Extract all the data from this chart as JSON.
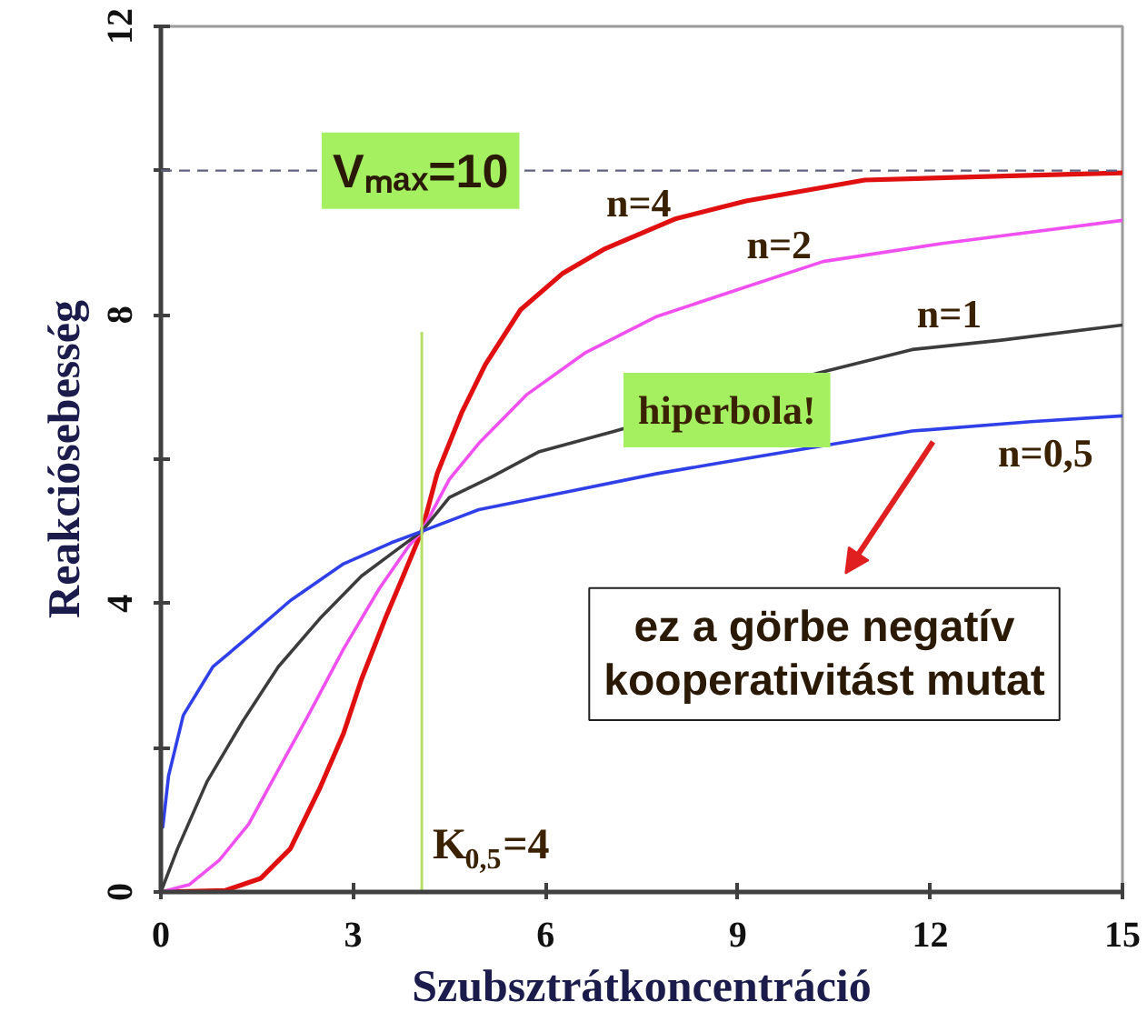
{
  "chart_data": {
    "type": "line",
    "xlabel": "Szubsztrátkoncentráció",
    "ylabel": "Reakciósebesség",
    "xlim": [
      0,
      15
    ],
    "ylim": [
      0,
      12
    ],
    "xticks": [
      0,
      3,
      6,
      9,
      12,
      15
    ],
    "yticks": [
      0,
      {
        "value": 2,
        "label": null
      },
      4,
      {
        "value": 6,
        "label": null
      },
      8,
      {
        "value": 10,
        "label": null
      },
      12
    ],
    "series": [
      {
        "name": "n=4",
        "color": "#e01010",
        "x": [
          0,
          1.0,
          1.56,
          2.02,
          2.48,
          2.85,
          3.13,
          3.5,
          3.78,
          4.07,
          4.31,
          4.69,
          5.06,
          5.61,
          6.26,
          6.91,
          8.02,
          9.13,
          10.98,
          13.39,
          15
        ],
        "values": [
          0,
          0.02,
          0.19,
          0.6,
          1.44,
          2.2,
          2.95,
          3.79,
          4.38,
          5.0,
          5.8,
          6.64,
          7.31,
          8.07,
          8.57,
          8.91,
          9.33,
          9.58,
          9.87,
          9.93,
          9.97
        ]
      },
      {
        "name": "n=2",
        "color": "#f050f0",
        "x": [
          0,
          0.44,
          0.91,
          1.37,
          1.83,
          2.3,
          2.85,
          3.41,
          3.87,
          4.07,
          4.5,
          4.96,
          5.7,
          6.63,
          7.74,
          9.0,
          10.33,
          12.19,
          15
        ],
        "values": [
          0,
          0.1,
          0.44,
          0.94,
          1.69,
          2.45,
          3.37,
          4.21,
          4.8,
          5.0,
          5.72,
          6.22,
          6.89,
          7.48,
          7.98,
          8.35,
          8.74,
          8.99,
          9.31
        ]
      },
      {
        "name": "n=1",
        "color": "#3c3c3c",
        "x": [
          0,
          0.26,
          0.72,
          1.28,
          1.83,
          2.48,
          3.13,
          3.69,
          4.07,
          4.5,
          5.15,
          5.89,
          7.09,
          10.24,
          11.72,
          13.11,
          15
        ],
        "values": [
          0,
          0.6,
          1.53,
          2.37,
          3.12,
          3.79,
          4.38,
          4.75,
          5.0,
          5.47,
          5.75,
          6.1,
          6.39,
          7.19,
          7.52,
          7.65,
          7.86
        ]
      },
      {
        "name": "n=0,5",
        "color": "#3040e8",
        "x": [
          0.03,
          0.12,
          0.35,
          0.81,
          1.37,
          2.02,
          2.85,
          3.59,
          4.07,
          4.96,
          6.35,
          7.74,
          9.13,
          11.72,
          13.57,
          15
        ],
        "values": [
          0.9,
          1.61,
          2.45,
          3.12,
          3.54,
          4.04,
          4.55,
          4.84,
          5.0,
          5.3,
          5.55,
          5.8,
          6.01,
          6.39,
          6.52,
          6.6
        ]
      },
      {
        "color": "#b5e068",
        "x": [
          4.07,
          4.07
        ],
        "values": [
          0,
          7.75
        ]
      }
    ],
    "ref_lines": [
      {
        "axis": "y",
        "value": 10,
        "label": "Vₘₐₓ=10",
        "color": "#606080",
        "line_style": "dashed"
      }
    ],
    "annotations": [
      {
        "text": "K$_{0,5}$=4",
        "x": 4.07,
        "y": 0.85
      },
      {
        "text": "hiperbola!",
        "x": 8.83,
        "y": 6.68
      },
      "ez a görbe negatív kooperativitást mutat"
    ]
  }
}
